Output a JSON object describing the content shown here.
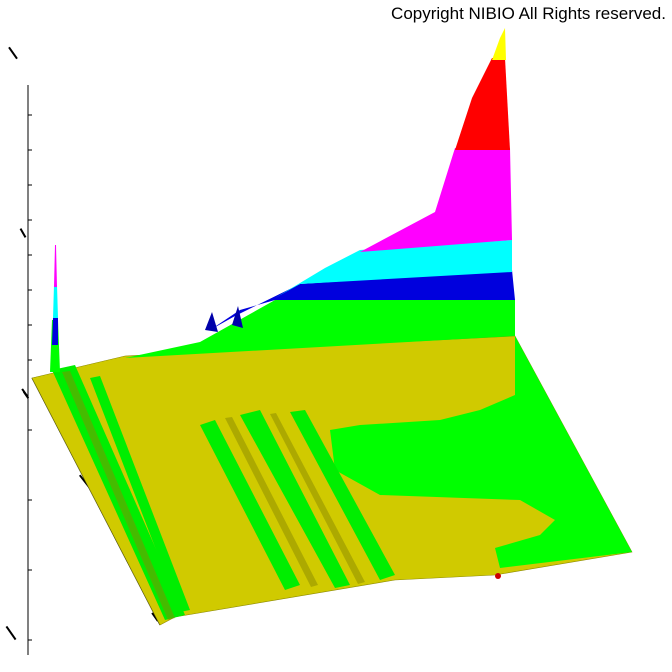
{
  "copyright": "Copyright NIBIO All Rights reserved.",
  "chart_data": {
    "type": "surface",
    "title": "",
    "color_bands": [
      {
        "level": 1,
        "color": "#d4cc00"
      },
      {
        "level": 2,
        "color": "#00ff00"
      },
      {
        "level": 3,
        "color": "#0000dd"
      },
      {
        "level": 4,
        "color": "#00ffff"
      },
      {
        "level": 5,
        "color": "#ff00ff"
      },
      {
        "level": 6,
        "color": "#ff0000"
      },
      {
        "level": 7,
        "color": "#ffff00"
      }
    ],
    "ridge_profile": [
      {
        "x": 0.0,
        "z": 0.2
      },
      {
        "x": 0.1,
        "z": 0.28
      },
      {
        "x": 0.2,
        "z": 0.34
      },
      {
        "x": 0.3,
        "z": 0.4
      },
      {
        "x": 0.4,
        "z": 0.48
      },
      {
        "x": 0.5,
        "z": 0.58
      },
      {
        "x": 0.6,
        "z": 0.7
      },
      {
        "x": 0.7,
        "z": 0.82
      },
      {
        "x": 0.8,
        "z": 0.97
      },
      {
        "x": 0.85,
        "z": 1.08
      },
      {
        "x": 0.9,
        "z": 1.45
      },
      {
        "x": 0.95,
        "z": 2.1
      },
      {
        "x": 1.0,
        "z": 3.0
      }
    ],
    "grid": false,
    "legend": "none"
  }
}
